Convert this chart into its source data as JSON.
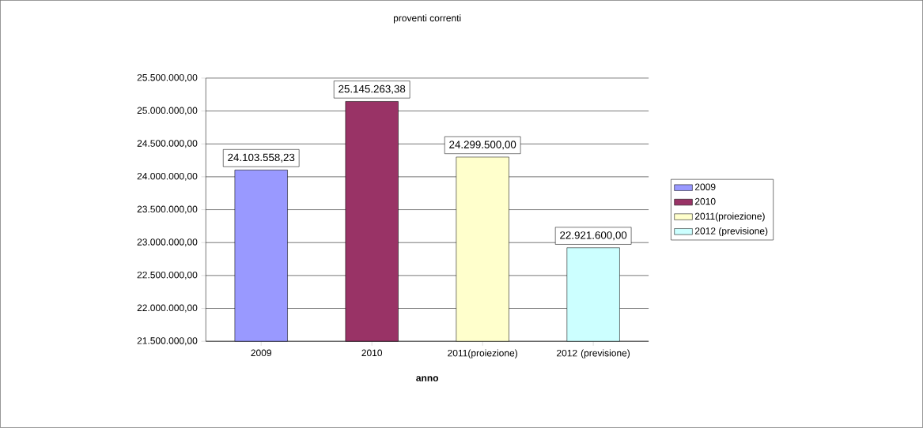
{
  "chart_data": {
    "type": "bar",
    "title": "proventi correnti",
    "xlabel": "anno",
    "categories": [
      "2009",
      "2010",
      "2011(proiezione)",
      "2012 (previsione)"
    ],
    "series": [
      {
        "name": "2009",
        "color": "#9999ff",
        "values": [
          24103558.23,
          null,
          null,
          null
        ],
        "value_labels": [
          "24.103.558,23",
          null,
          null,
          null
        ]
      },
      {
        "name": "2010",
        "color": "#993366",
        "values": [
          null,
          25145263.38,
          null,
          null
        ],
        "value_labels": [
          null,
          "25.145.263,38",
          null,
          null
        ]
      },
      {
        "name": "2011(proiezione)",
        "color": "#ffffcc",
        "values": [
          null,
          null,
          24299500.0,
          null
        ],
        "value_labels": [
          null,
          null,
          "24.299.500,00",
          null
        ]
      },
      {
        "name": "2012 (previsione)",
        "color": "#ccffff",
        "values": [
          null,
          null,
          null,
          22921600.0
        ],
        "value_labels": [
          null,
          null,
          null,
          "22.921.600,00"
        ]
      }
    ],
    "ylim": [
      21500000,
      25500000
    ],
    "yticks": [
      {
        "value": 21500000,
        "label": "21.500.000,00"
      },
      {
        "value": 22000000,
        "label": "22.000.000,00"
      },
      {
        "value": 22500000,
        "label": "22.500.000,00"
      },
      {
        "value": 23000000,
        "label": "23.000.000,00"
      },
      {
        "value": 23500000,
        "label": "23.500.000,00"
      },
      {
        "value": 24000000,
        "label": "24.000.000,00"
      },
      {
        "value": 24500000,
        "label": "24.500.000,00"
      },
      {
        "value": 25000000,
        "label": "25.000.000,00"
      },
      {
        "value": 25500000,
        "label": "25.500.000,00"
      }
    ],
    "grid": "y",
    "legend": "right"
  }
}
